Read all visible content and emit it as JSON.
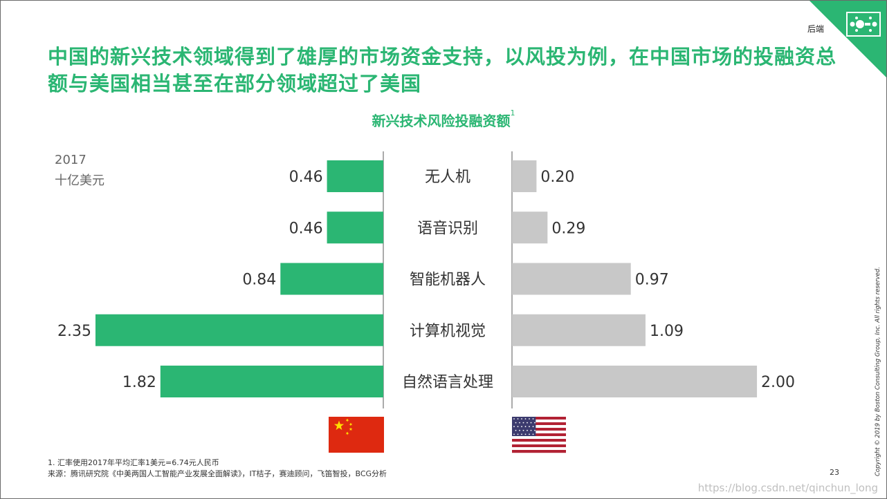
{
  "header": {
    "section_label": "后端",
    "title": "中国的新兴技术领域得到了雄厚的市场资金支持，以风投为例，在中国市场的投融资总额与美国相当甚至在部分领域超过了美国",
    "logo_icon": "bcg-logo-icon"
  },
  "colors": {
    "accent": "#2bb673",
    "china_bar": "#2bb673",
    "us_bar": "#c8c8c8"
  },
  "chart_data": {
    "type": "bar",
    "orientation": "horizontal-butterfly",
    "title": "新兴技术风险投融资额",
    "title_superscript": "1",
    "unit_year": "2017",
    "unit": "十亿美元",
    "categories": [
      "无人机",
      "语音识别",
      "智能机器人",
      "计算机视觉",
      "自然语言处理"
    ],
    "series": [
      {
        "key": "china",
        "values": [
          0.46,
          0.46,
          0.84,
          2.35,
          1.82
        ],
        "labels": [
          "0.46",
          "0.46",
          "0.84",
          "2.35",
          "1.82"
        ],
        "side": "left",
        "flag_icon": "china-flag-icon"
      },
      {
        "key": "us",
        "values": [
          0.2,
          0.29,
          0.97,
          1.09,
          2.0
        ],
        "labels": [
          "0.20",
          "0.29",
          "0.97",
          "1.09",
          "2.00"
        ],
        "side": "right",
        "flag_icon": "us-flag-icon"
      }
    ],
    "xlim": [
      0,
      2.35
    ]
  },
  "footer": {
    "footnote": "1. 汇率使用2017年平均汇率1美元=6.74元人民币",
    "source": "来源：腾讯研究院《中美两国人工智能产业发展全面解读》，IT桔子，赛迪顾问，飞笛智投，BCG分析",
    "page_number": "23",
    "copyright": "Copyright © 2019 by Boston Consulting Group, Inc. All rights reserved.",
    "watermark": "https://blog.csdn.net/qinchun_long"
  }
}
